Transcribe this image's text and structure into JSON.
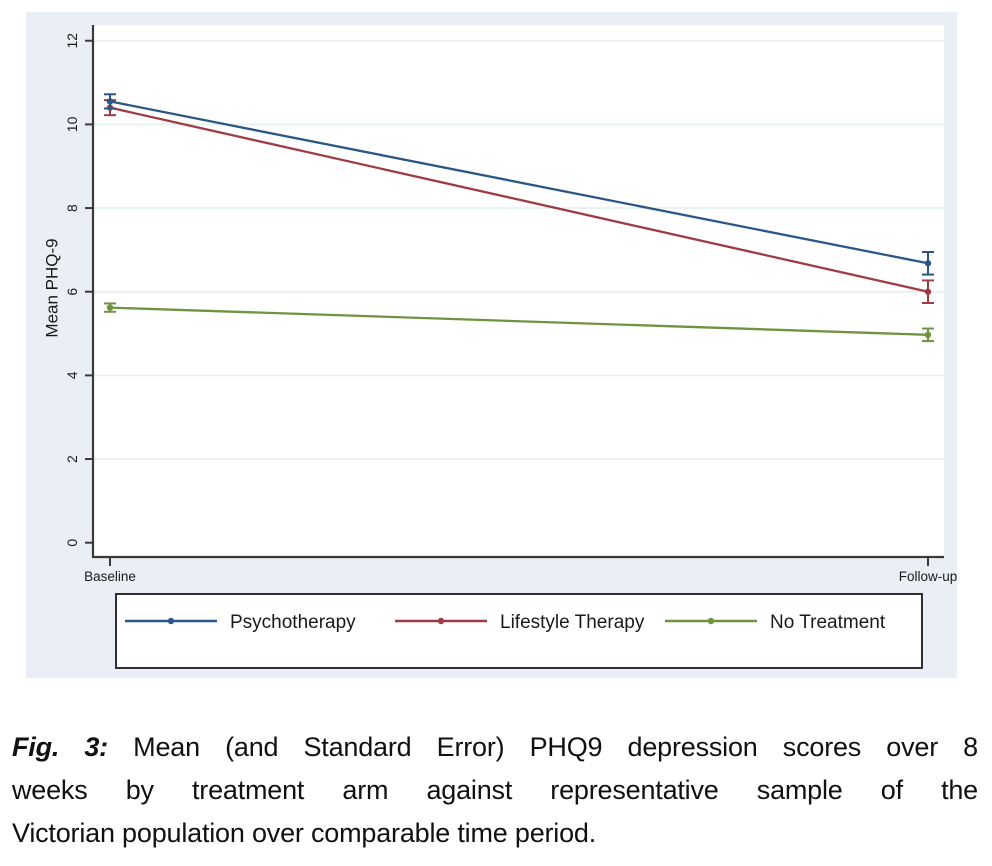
{
  "chart_data": {
    "type": "line",
    "title": "",
    "ylabel": "Mean PHQ-9",
    "xlabel": "",
    "x_categories": [
      "Baseline",
      "Follow-up"
    ],
    "y_ticks": [
      0,
      2,
      4,
      6,
      8,
      10,
      12
    ],
    "ylim": [
      -0.35,
      12.4
    ],
    "grid": true,
    "legend_position": "bottom",
    "error_bars": "standard error",
    "series": [
      {
        "name": "Psychotherapy",
        "color": "#2a5783",
        "values": [
          10.55,
          6.68
        ],
        "se": [
          0.17,
          0.27
        ]
      },
      {
        "name": "Lifestyle Therapy",
        "color": "#9e3c44",
        "values": [
          10.4,
          6.0
        ],
        "se": [
          0.18,
          0.27
        ]
      },
      {
        "name": "No Treatment",
        "color": "#6f9440",
        "values": [
          5.62,
          4.97
        ],
        "se": [
          0.1,
          0.15
        ]
      }
    ],
    "colors": {
      "figure_bg": "#e9eff4",
      "plot_bg": "#ffffff",
      "grid": "#e7efef",
      "axis": "#3a3a3a",
      "text": "#1a1a1a",
      "legend_border": "#2f2f2f",
      "legend_bg": "#ffffff"
    }
  },
  "caption": {
    "label": "Fig. 3:",
    "lines": [
      "Mean (and Standard Error) PHQ9 depression scores over 8",
      "weeks by treatment arm against representative sample of the",
      "Victorian population over comparable time period."
    ]
  }
}
